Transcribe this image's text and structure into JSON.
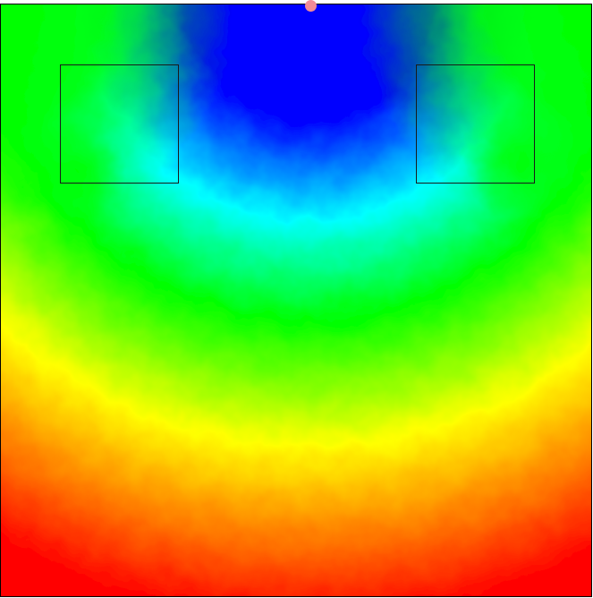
{
  "colors": {
    "source_marker": "#f28b97",
    "outline": "#000000",
    "scale": [
      "#0000ff",
      "#00ffff",
      "#00ff00",
      "#ffff00",
      "#ff0000"
    ]
  },
  "field": {
    "obstacle_count": 2,
    "source_marker_count": 1
  }
}
